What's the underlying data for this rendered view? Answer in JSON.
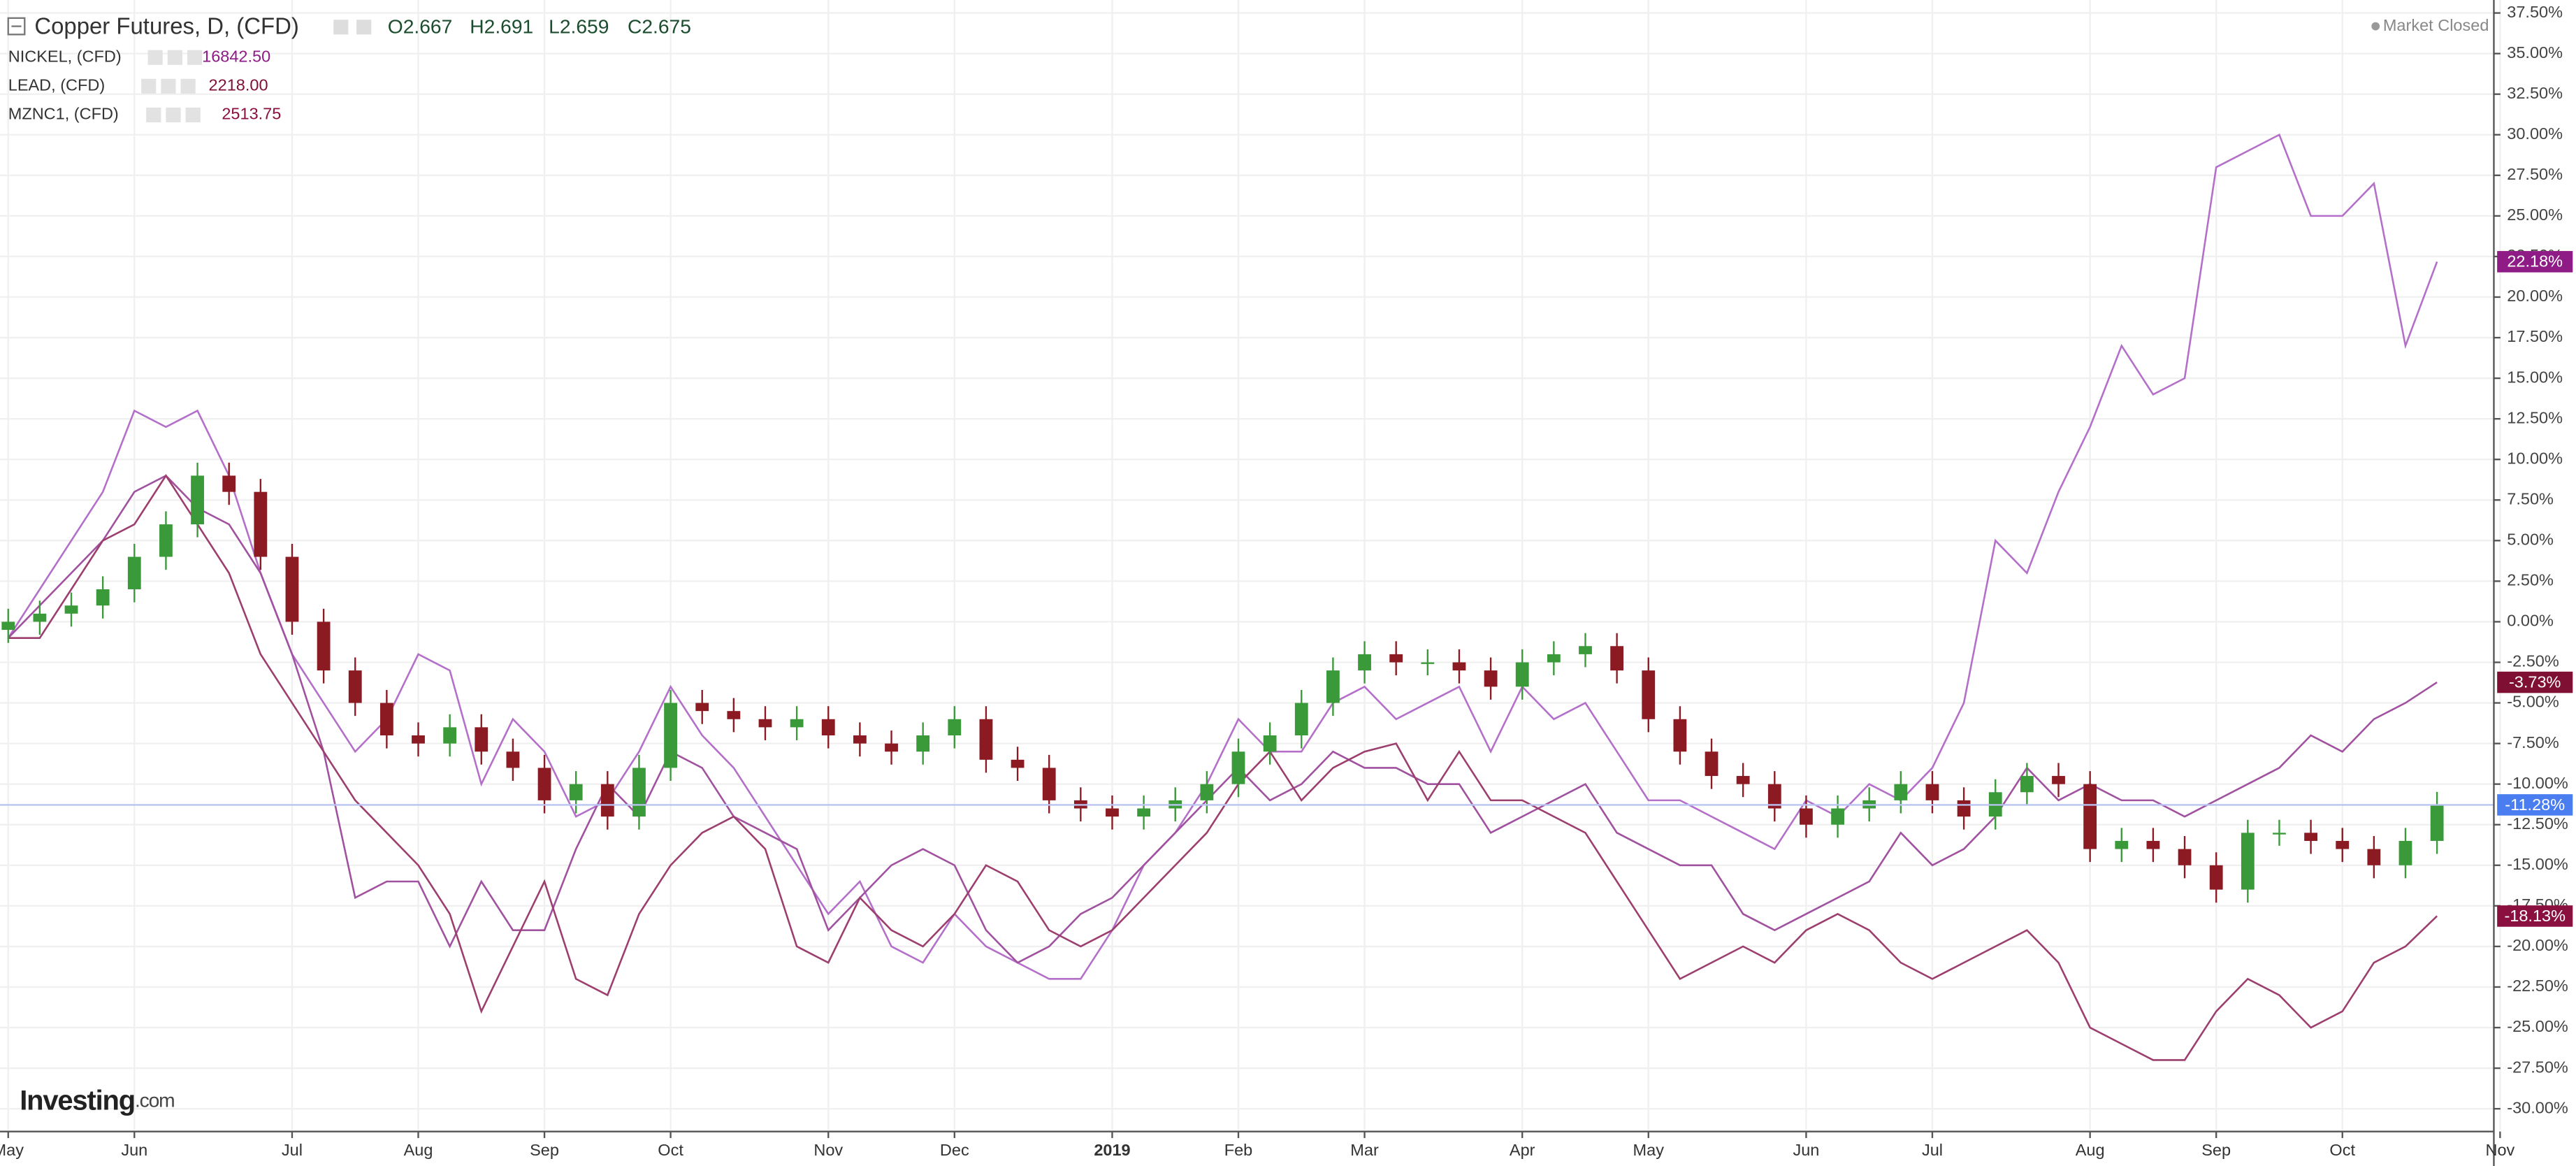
{
  "chart_data": {
    "type": "candlestick",
    "title": "Copper Futures, D, (CFD)",
    "header_values": [
      "O2.667",
      "H2.691",
      "L2.659",
      "C2.675"
    ],
    "status": "Market Closed",
    "brand": "Investing",
    "brand_suffix": ".com",
    "categories": [
      "May",
      null,
      null,
      null,
      "Jun",
      null,
      null,
      null,
      null,
      "Jul",
      null,
      null,
      null,
      "Aug",
      null,
      null,
      null,
      "Sep",
      null,
      null,
      null,
      "Oct",
      null,
      null,
      null,
      null,
      "Nov",
      null,
      null,
      null,
      "Dec",
      null,
      null,
      null,
      null,
      "2019",
      null,
      null,
      null,
      "Feb",
      null,
      null,
      null,
      "Mar",
      null,
      null,
      null,
      null,
      "Apr",
      null,
      null,
      null,
      "May",
      null,
      null,
      null,
      null,
      "Jun",
      null,
      null,
      null,
      "Jul",
      null,
      null,
      null,
      null,
      "Aug",
      null,
      null,
      null,
      "Sep",
      null,
      null,
      null,
      "Oct",
      null,
      null,
      null,
      null,
      "Nov"
    ],
    "ohlc": {
      "up_color": "#3a9a3a",
      "down_color": "#8b1a22",
      "line_color": "#b9c4f4",
      "label_color": "#4a7ef0",
      "last_label": "-11.28%",
      "open": [
        -0.5,
        0,
        0.5,
        1,
        2,
        4,
        6,
        9,
        8,
        4,
        0,
        -3,
        -5,
        -7,
        -7.5,
        -6.5,
        -8,
        -9,
        -11,
        -10,
        -12,
        -9,
        -5,
        -5.5,
        -6,
        -6.5,
        -6,
        -7,
        -7.5,
        -8,
        -7,
        -6,
        -8.5,
        -9,
        -11,
        -11.5,
        -12,
        -11.5,
        -11,
        -10,
        -8,
        -7,
        -5,
        -3,
        -2,
        -2.5,
        -2.5,
        -3,
        -4,
        -2.5,
        -2,
        -1.5,
        -3,
        -6,
        -8,
        -9.5,
        -10,
        -11.5,
        -12.5,
        -11.5,
        -11,
        -10,
        -11,
        -12,
        -10.5,
        -9.5,
        -10,
        -14,
        -13.5,
        -14,
        -15,
        -16.5,
        -13,
        -13,
        -13.5,
        -14,
        -15,
        -13.5,
        null,
        null
      ],
      "high": [
        0.8,
        1.3,
        1.8,
        2.8,
        4.8,
        6.8,
        9.8,
        9.8,
        8.8,
        4.8,
        0.8,
        -2.2,
        -4.2,
        -6.2,
        -5.7,
        -5.7,
        -7.2,
        -8.2,
        -9.2,
        -9.2,
        -8.2,
        -4.2,
        -4.2,
        -4.7,
        -5.2,
        -5.2,
        -5.2,
        -6.2,
        -6.7,
        -6.2,
        -5.2,
        -5.2,
        -7.7,
        -8.2,
        -10.2,
        -10.7,
        -10.7,
        -10.2,
        -9.2,
        -7.2,
        -6.2,
        -4.2,
        -2.2,
        -1.2,
        -1.2,
        -1.7,
        -1.7,
        -2.2,
        -1.7,
        -1.2,
        -0.7,
        -0.7,
        -2.2,
        -5.2,
        -7.2,
        -8.7,
        -9.2,
        -10.7,
        -10.7,
        -10.2,
        -9.2,
        -9.2,
        -10.2,
        -9.7,
        -8.7,
        -8.7,
        -9.2,
        -12.7,
        -12.7,
        -13.2,
        -14.2,
        -12.2,
        -12.2,
        -12.2,
        -12.7,
        -13.2,
        -12.7,
        -10.48,
        null,
        null
      ],
      "low": [
        -1.3,
        -0.8,
        -0.3,
        0.2,
        1.2,
        3.2,
        5.2,
        7.2,
        3.2,
        -0.8,
        -3.8,
        -5.8,
        -7.8,
        -8.3,
        -8.3,
        -8.8,
        -9.8,
        -11.8,
        -11.8,
        -12.8,
        -12.8,
        -9.8,
        -6.3,
        -6.8,
        -7.3,
        -7.3,
        -7.8,
        -8.3,
        -8.8,
        -8.8,
        -7.8,
        -9.3,
        -9.8,
        -11.8,
        -12.3,
        -12.8,
        -12.8,
        -12.3,
        -11.8,
        -10.8,
        -8.8,
        -7.8,
        -5.8,
        -3.8,
        -3.3,
        -3.3,
        -3.8,
        -4.8,
        -4.8,
        -3.3,
        -2.8,
        -3.8,
        -6.8,
        -8.8,
        -10.3,
        -10.8,
        -12.3,
        -13.3,
        -13.3,
        -12.3,
        -11.8,
        -11.8,
        -12.8,
        -12.8,
        -11.3,
        -10.8,
        -14.8,
        -14.8,
        -14.8,
        -15.8,
        -17.3,
        -17.3,
        -13.8,
        -14.3,
        -14.8,
        -15.8,
        -15.8,
        -14.3,
        null,
        null
      ],
      "close": [
        0,
        0.5,
        1,
        2,
        4,
        6,
        9,
        8,
        4,
        0,
        -3,
        -5,
        -7,
        -7.5,
        -6.5,
        -8,
        -9,
        -11,
        -10,
        -12,
        -9,
        -5,
        -5.5,
        -6,
        -6.5,
        -6,
        -7,
        -7.5,
        -8,
        -7,
        -6,
        -8.5,
        -9,
        -11,
        -11.5,
        -12,
        -11.5,
        -11,
        -10,
        -8,
        -7,
        -5,
        -3,
        -2,
        -2.5,
        -2.5,
        -3,
        -4,
        -2.5,
        -2,
        -1.5,
        -3,
        -6,
        -8,
        -9.5,
        -10,
        -11.5,
        -12.5,
        -11.5,
        -11,
        -10,
        -11,
        -12,
        -10.5,
        -9.5,
        -10,
        -14,
        -13.5,
        -14,
        -15,
        -16.5,
        -13,
        -13,
        -13.5,
        -14,
        -15,
        -13.5,
        -11.28,
        null,
        null
      ]
    },
    "series": [
      {
        "name": "NICKEL, (CFD)",
        "legend_value": "16842.50",
        "color": "#b46fc9",
        "label_color": "#8e1b86",
        "last_label": "22.18%",
        "values": [
          -1,
          2,
          5,
          8,
          13,
          12,
          13,
          9,
          3,
          -2,
          -5,
          -8,
          -6,
          -2,
          -3,
          -10,
          -6,
          -8,
          -12,
          -11,
          -8,
          -4,
          -7,
          -9,
          -12,
          -15,
          -18,
          -16,
          -20,
          -21,
          -18,
          -20,
          -21,
          -22,
          -22,
          -19,
          -15,
          -13,
          -10,
          -6,
          -8,
          -8,
          -5,
          -4,
          -6,
          -5,
          -4,
          -8,
          -4,
          -6,
          -5,
          -8,
          -11,
          -11,
          -12,
          -13,
          -14,
          -11,
          -12,
          -10,
          -11,
          -9,
          -5,
          5,
          3,
          8,
          12,
          17,
          14,
          15,
          28,
          29,
          30,
          25,
          25,
          27,
          17,
          22.18,
          null,
          null
        ]
      },
      {
        "name": "LEAD, (CFD)",
        "legend_value": "2218.00",
        "color": "#a0519f",
        "label_color": "#7f1034",
        "last_label": "-3.73%",
        "values": [
          -1,
          1,
          3,
          5,
          8,
          9,
          7,
          6,
          3,
          -2,
          -8,
          -17,
          -16,
          -16,
          -20,
          -16,
          -19,
          -19,
          -14,
          -10,
          -12,
          -8,
          -9,
          -12,
          -13,
          -14,
          -19,
          -17,
          -15,
          -14,
          -15,
          -19,
          -21,
          -20,
          -18,
          -17,
          -15,
          -13,
          -11,
          -9,
          -11,
          -10,
          -8,
          -9,
          -9,
          -10,
          -10,
          -13,
          -12,
          -11,
          -10,
          -13,
          -14,
          -15,
          -15,
          -18,
          -19,
          -18,
          -17,
          -16,
          -13,
          -15,
          -14,
          -12,
          -9,
          -11,
          -10,
          -11,
          -11,
          -12,
          -11,
          -10,
          -9,
          -7,
          -8,
          -6,
          -5,
          -3.73,
          null,
          null
        ]
      },
      {
        "name": "MZNC1, (CFD)",
        "legend_value": "2513.75",
        "color": "#9c3f6e",
        "label_color": "#8a1040",
        "last_label": "-18.13%",
        "values": [
          -1,
          -1,
          2,
          5,
          6,
          9,
          6,
          3,
          -2,
          -5,
          -8,
          -11,
          -13,
          -15,
          -18,
          -24,
          -20,
          -16,
          -22,
          -23,
          -18,
          -15,
          -13,
          -12,
          -14,
          -20,
          -21,
          -17,
          -19,
          -20,
          -18,
          -15,
          -16,
          -19,
          -20,
          -19,
          -17,
          -15,
          -13,
          -10,
          -8,
          -11,
          -9,
          -8,
          -7.5,
          -11,
          -8,
          -11,
          -11,
          -12,
          -13,
          -16,
          -19,
          -22,
          -21,
          -20,
          -21,
          -19,
          -18,
          -19,
          -21,
          -22,
          -21,
          -20,
          -19,
          -21,
          -25,
          -26,
          -27,
          -27,
          -24,
          -22,
          -23,
          -25,
          -24,
          -21,
          -20,
          -18.13,
          null,
          null
        ]
      }
    ],
    "ylim": [
      -31.3,
      38.3
    ],
    "yticks": [
      {
        "value": 37.5,
        "label": "37.50%"
      },
      {
        "value": 35,
        "label": "35.00%"
      },
      {
        "value": 32.5,
        "label": "32.50%"
      },
      {
        "value": 30,
        "label": "30.00%"
      },
      {
        "value": 27.5,
        "label": "27.50%"
      },
      {
        "value": 25,
        "label": "25.00%"
      },
      {
        "value": 22.5,
        "label": "22.50%"
      },
      {
        "value": 20,
        "label": "20.00%"
      },
      {
        "value": 17.5,
        "label": "17.50%"
      },
      {
        "value": 15,
        "label": "15.00%"
      },
      {
        "value": 12.5,
        "label": "12.50%"
      },
      {
        "value": 10,
        "label": "10.00%"
      },
      {
        "value": 7.5,
        "label": "7.50%"
      },
      {
        "value": 5,
        "label": "5.00%"
      },
      {
        "value": 2.5,
        "label": "2.50%"
      },
      {
        "value": 0,
        "label": "0.00%"
      },
      {
        "value": -2.5,
        "label": "-2.50%"
      },
      {
        "value": -5,
        "label": "-5.00%"
      },
      {
        "value": -7.5,
        "label": "-7.50%"
      },
      {
        "value": -10,
        "label": "-10.00%"
      },
      {
        "value": -12.5,
        "label": "-12.50%"
      },
      {
        "value": -15,
        "label": "-15.00%"
      },
      {
        "value": -17.5,
        "label": "-17.50%"
      },
      {
        "value": -20,
        "label": "-20.00%"
      },
      {
        "value": -22.5,
        "label": "-22.50%"
      },
      {
        "value": -25,
        "label": "-25.00%"
      },
      {
        "value": -27.5,
        "label": "-27.50%"
      },
      {
        "value": -30,
        "label": "-30.00%"
      }
    ],
    "grid": true
  }
}
